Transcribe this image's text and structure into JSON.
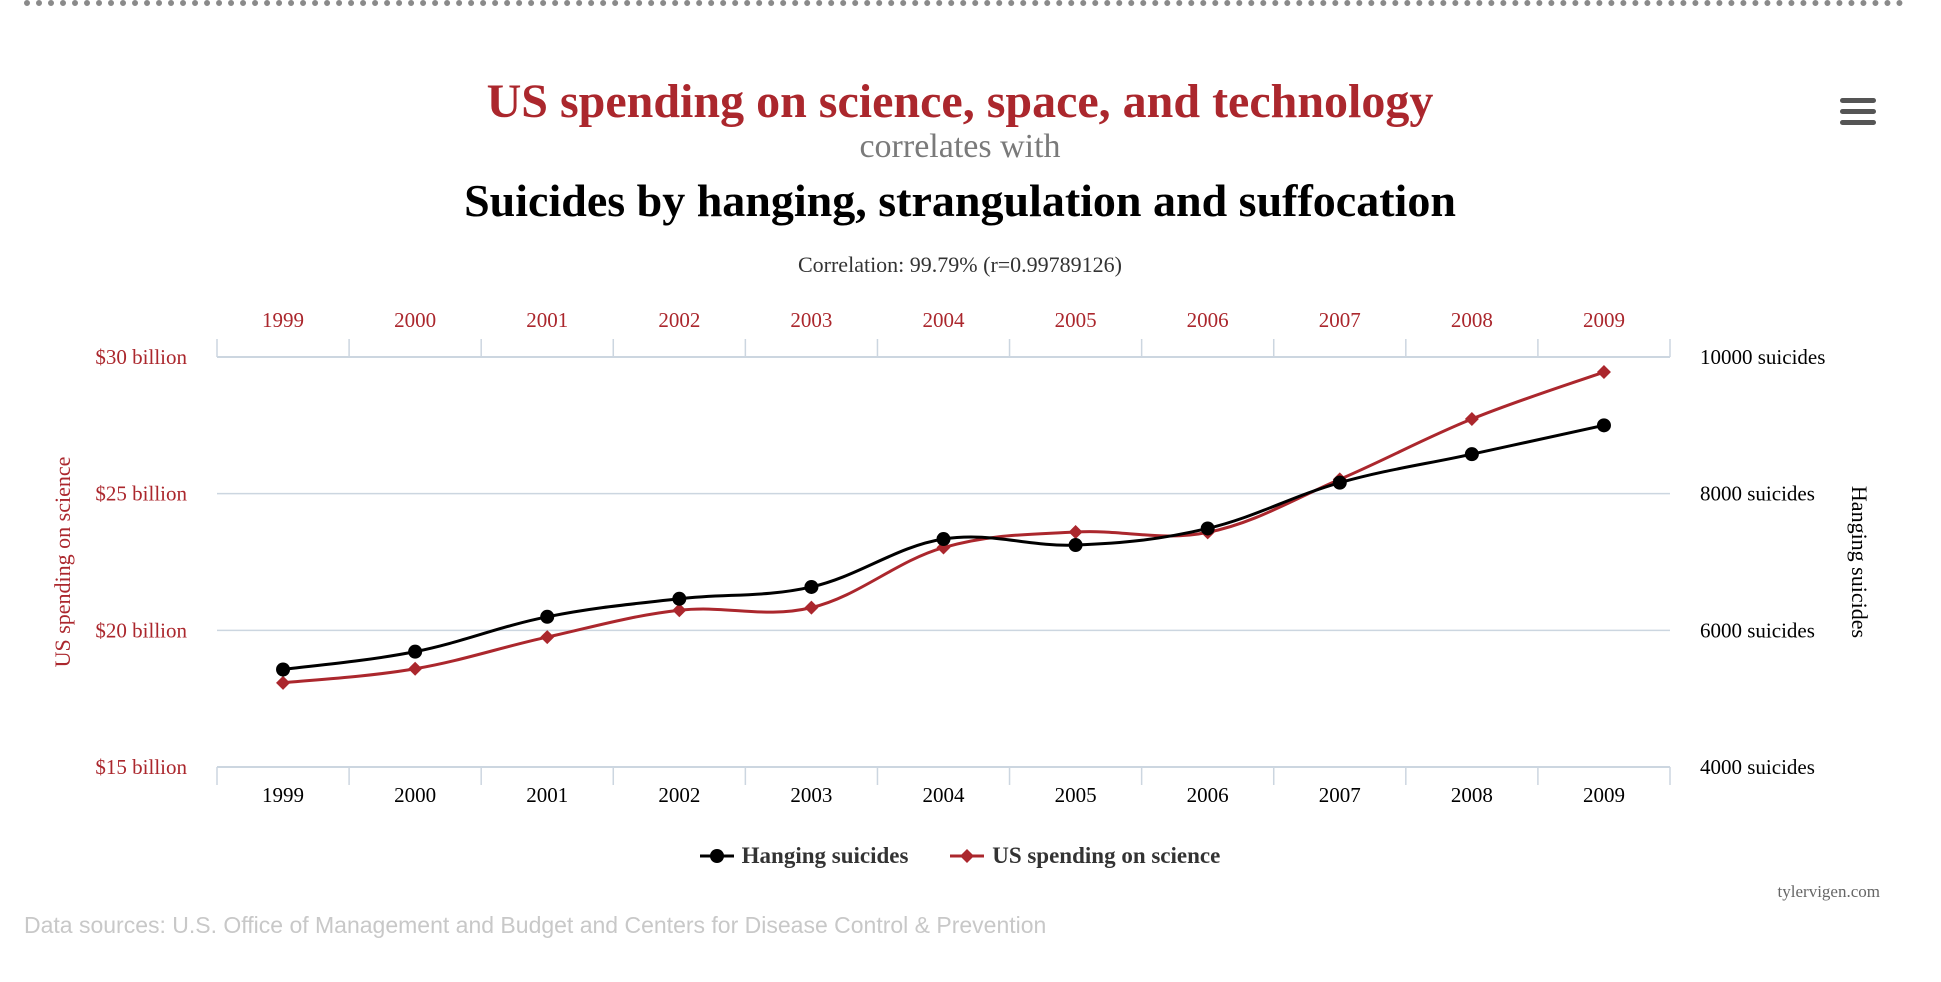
{
  "header": {
    "title": "US spending on science, space, and technology",
    "connector": "correlates with",
    "subtitle": "Suicides by hanging, strangulation and suffocation",
    "correlation": "Correlation: 99.79% (r=0.99789126)"
  },
  "credit": "tylervigen.com",
  "sources": "Data sources: U.S. Office of Management and Budget and Centers for Disease Control & Prevention",
  "chart_data": {
    "type": "line",
    "x": [
      1999,
      2000,
      2001,
      2002,
      2003,
      2004,
      2005,
      2006,
      2007,
      2008,
      2009
    ],
    "categories": [
      "1999",
      "2000",
      "2001",
      "2002",
      "2003",
      "2004",
      "2005",
      "2006",
      "2007",
      "2008",
      "2009"
    ],
    "series": [
      {
        "name": "Hanging suicides",
        "axis": "right",
        "color": "#000000",
        "marker": "circle",
        "values": [
          5427,
          5688,
          6198,
          6462,
          6635,
          7336,
          7248,
          7491,
          8161,
          8578,
          9000
        ]
      },
      {
        "name": "US spending on science",
        "axis": "left",
        "color": "#ab272d",
        "marker": "diamond",
        "values": [
          18.079,
          18.594,
          19.753,
          20.734,
          20.831,
          23.029,
          23.597,
          23.584,
          25.525,
          27.731,
          29.449
        ]
      }
    ],
    "left_axis": {
      "label": "US spending on science",
      "ylim": [
        15,
        30
      ],
      "ticks": [
        {
          "value": 15,
          "label": "$15 billion"
        },
        {
          "value": 20,
          "label": "$20 billion"
        },
        {
          "value": 25,
          "label": "$25 billion"
        },
        {
          "value": 30,
          "label": "$30 billion"
        }
      ],
      "color": "#ab272d"
    },
    "right_axis": {
      "label": "Hanging suicides",
      "ylim": [
        4000,
        10000
      ],
      "ticks": [
        {
          "value": 4000,
          "label": "4000 suicides"
        },
        {
          "value": 6000,
          "label": "6000 suicides"
        },
        {
          "value": 8000,
          "label": "8000 suicides"
        },
        {
          "value": 10000,
          "label": "10000 suicides"
        }
      ],
      "color": "#000000"
    },
    "grid": true,
    "legend": "bottom-center",
    "colors": {
      "spending": "#ab272d",
      "suicides": "#000000",
      "grid": "#ccd6e0"
    }
  }
}
